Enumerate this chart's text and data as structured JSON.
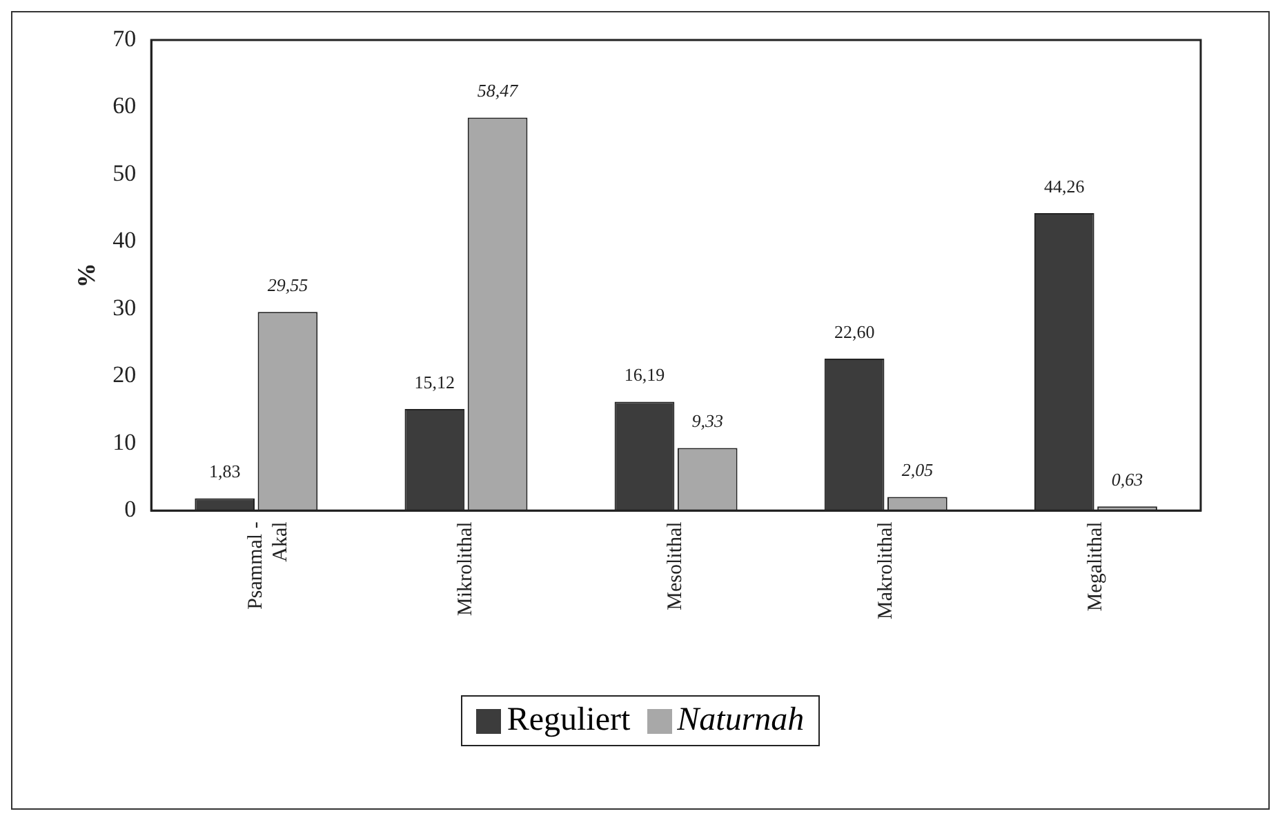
{
  "chart_data": {
    "type": "bar",
    "ylabel": "%",
    "categories": [
      "Psammal - Akal",
      "Mikrolithal",
      "Mesolithal",
      "Makrolithal",
      "Megalithal"
    ],
    "series": [
      {
        "name": "Reguliert",
        "color": "#3c3c3c",
        "values": [
          1.83,
          15.12,
          16.19,
          22.6,
          44.26
        ],
        "value_labels": [
          "1,83",
          "15,12",
          "16,19",
          "22,60",
          "44,26"
        ]
      },
      {
        "name": "Naturnah",
        "color": "#a8a8a8",
        "values": [
          29.55,
          58.47,
          9.33,
          2.05,
          0.63
        ],
        "value_labels": [
          "29,55",
          "58,47",
          "9,33",
          "2,05",
          "0,63"
        ]
      }
    ],
    "ylim": [
      0,
      70
    ],
    "yticks": [
      0,
      10,
      20,
      30,
      40,
      50,
      60,
      70
    ],
    "grid": false,
    "legend": "bottom"
  }
}
